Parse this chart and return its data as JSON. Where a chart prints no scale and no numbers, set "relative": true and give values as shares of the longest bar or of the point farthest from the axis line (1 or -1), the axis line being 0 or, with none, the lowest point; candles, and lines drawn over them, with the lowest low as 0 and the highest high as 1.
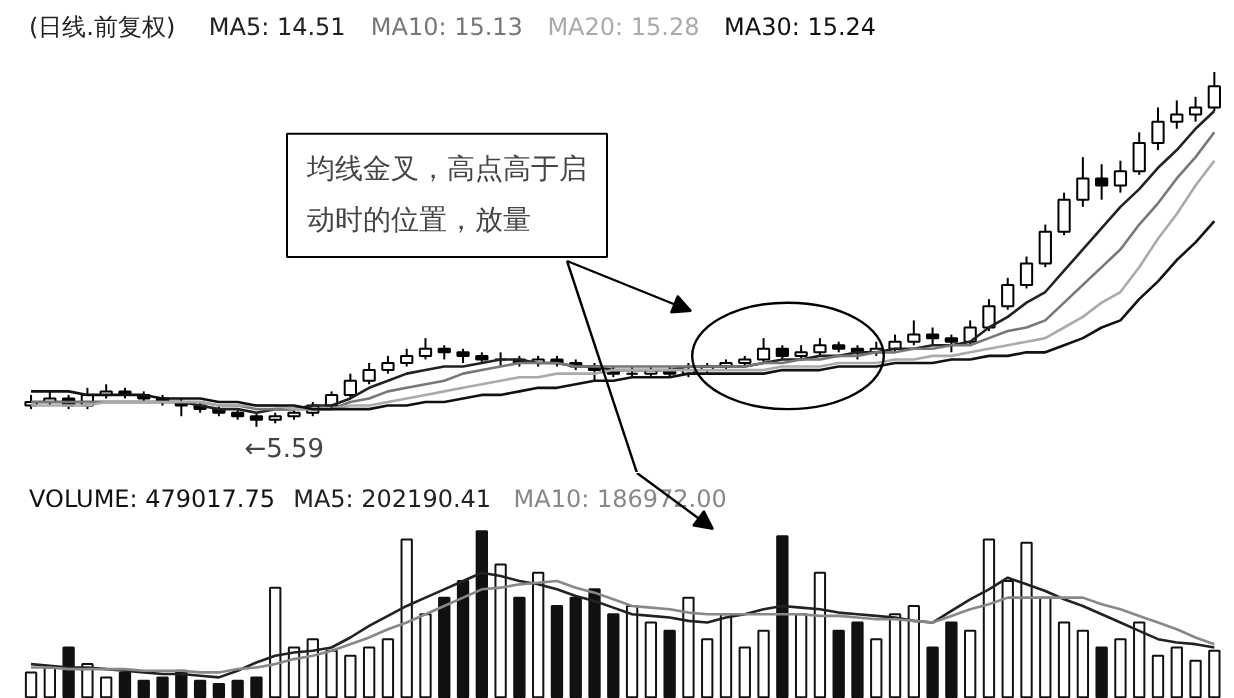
{
  "chart_data": [
    {
      "type": "candlestick",
      "title": "(日线.前复权)",
      "relative": true,
      "legend": "top left",
      "categories": [
        null,
        null,
        null,
        null,
        null,
        null,
        null,
        null,
        null,
        null,
        null,
        null,
        null,
        null,
        null,
        null,
        null,
        null,
        null,
        null,
        null,
        null,
        null,
        null,
        null,
        null,
        null,
        null,
        null,
        null,
        null,
        null,
        null,
        null,
        null,
        null,
        null,
        null,
        null,
        null,
        null,
        null,
        null,
        null,
        null,
        null,
        null,
        null,
        null,
        null,
        null,
        null,
        null,
        null,
        null,
        null,
        null,
        null,
        null,
        null,
        null,
        null,
        null,
        null
      ],
      "ohlc": [
        [
          0.06,
          0.09,
          0.05,
          0.07
        ],
        [
          0.07,
          0.1,
          0.06,
          0.08
        ],
        [
          0.08,
          0.09,
          0.05,
          0.06
        ],
        [
          0.06,
          0.11,
          0.05,
          0.09
        ],
        [
          0.09,
          0.12,
          0.08,
          0.1
        ],
        [
          0.1,
          0.11,
          0.08,
          0.09
        ],
        [
          0.09,
          0.1,
          0.07,
          0.08
        ],
        [
          0.08,
          0.09,
          0.06,
          0.07
        ],
        [
          0.07,
          0.08,
          0.03,
          0.06
        ],
        [
          0.06,
          0.07,
          0.04,
          0.05
        ],
        [
          0.05,
          0.06,
          0.03,
          0.04
        ],
        [
          0.04,
          0.05,
          0.02,
          0.03
        ],
        [
          0.03,
          0.04,
          0.0,
          0.02
        ],
        [
          0.02,
          0.04,
          0.01,
          0.03
        ],
        [
          0.03,
          0.05,
          0.02,
          0.04
        ],
        [
          0.04,
          0.07,
          0.03,
          0.06
        ],
        [
          0.06,
          0.1,
          0.05,
          0.09
        ],
        [
          0.09,
          0.15,
          0.08,
          0.13
        ],
        [
          0.13,
          0.18,
          0.12,
          0.16
        ],
        [
          0.16,
          0.2,
          0.15,
          0.18
        ],
        [
          0.18,
          0.22,
          0.17,
          0.2
        ],
        [
          0.2,
          0.25,
          0.19,
          0.22
        ],
        [
          0.22,
          0.23,
          0.19,
          0.21
        ],
        [
          0.21,
          0.22,
          0.18,
          0.2
        ],
        [
          0.2,
          0.21,
          0.18,
          0.19
        ],
        [
          0.19,
          0.21,
          0.17,
          0.19
        ],
        [
          0.19,
          0.2,
          0.17,
          0.18
        ],
        [
          0.18,
          0.2,
          0.17,
          0.19
        ],
        [
          0.19,
          0.2,
          0.17,
          0.18
        ],
        [
          0.18,
          0.19,
          0.16,
          0.17
        ],
        [
          0.17,
          0.18,
          0.13,
          0.16
        ],
        [
          0.16,
          0.17,
          0.14,
          0.15
        ],
        [
          0.15,
          0.17,
          0.14,
          0.15
        ],
        [
          0.15,
          0.17,
          0.14,
          0.16
        ],
        [
          0.16,
          0.17,
          0.14,
          0.15
        ],
        [
          0.15,
          0.18,
          0.14,
          0.16
        ],
        [
          0.16,
          0.18,
          0.15,
          0.17
        ],
        [
          0.17,
          0.19,
          0.16,
          0.18
        ],
        [
          0.18,
          0.2,
          0.17,
          0.19
        ],
        [
          0.19,
          0.25,
          0.18,
          0.22
        ],
        [
          0.22,
          0.23,
          0.19,
          0.2
        ],
        [
          0.2,
          0.23,
          0.19,
          0.21
        ],
        [
          0.21,
          0.25,
          0.2,
          0.23
        ],
        [
          0.23,
          0.24,
          0.21,
          0.22
        ],
        [
          0.22,
          0.23,
          0.19,
          0.21
        ],
        [
          0.21,
          0.24,
          0.2,
          0.22
        ],
        [
          0.22,
          0.26,
          0.21,
          0.24
        ],
        [
          0.24,
          0.3,
          0.23,
          0.26
        ],
        [
          0.26,
          0.28,
          0.23,
          0.25
        ],
        [
          0.25,
          0.26,
          0.21,
          0.24
        ],
        [
          0.24,
          0.3,
          0.23,
          0.28
        ],
        [
          0.28,
          0.36,
          0.27,
          0.34
        ],
        [
          0.34,
          0.42,
          0.33,
          0.4
        ],
        [
          0.4,
          0.48,
          0.39,
          0.46
        ],
        [
          0.46,
          0.57,
          0.45,
          0.55
        ],
        [
          0.55,
          0.66,
          0.54,
          0.64
        ],
        [
          0.64,
          0.76,
          0.62,
          0.7
        ],
        [
          0.7,
          0.74,
          0.64,
          0.68
        ],
        [
          0.68,
          0.75,
          0.66,
          0.72
        ],
        [
          0.72,
          0.83,
          0.71,
          0.8
        ],
        [
          0.8,
          0.9,
          0.78,
          0.86
        ],
        [
          0.86,
          0.92,
          0.84,
          0.88
        ],
        [
          0.88,
          0.93,
          0.86,
          0.9
        ],
        [
          0.9,
          1.0,
          0.89,
          0.96
        ]
      ],
      "series": [
        {
          "name": "MA5: 14.51",
          "type": "line",
          "color": "#222222",
          "values": [
            0.07,
            0.07,
            0.07,
            0.07,
            0.07,
            0.07,
            0.07,
            0.07,
            0.07,
            0.06,
            0.05,
            0.05,
            0.04,
            0.05,
            0.05,
            0.06,
            0.06,
            0.08,
            0.11,
            0.13,
            0.15,
            0.16,
            0.17,
            0.17,
            0.18,
            0.19,
            0.19,
            0.18,
            0.18,
            0.17,
            0.17,
            0.16,
            0.16,
            0.16,
            0.16,
            0.17,
            0.17,
            0.17,
            0.17,
            0.18,
            0.19,
            0.19,
            0.2,
            0.2,
            0.21,
            0.21,
            0.22,
            0.22,
            0.23,
            0.23,
            0.24,
            0.28,
            0.31,
            0.35,
            0.38,
            0.44,
            0.5,
            0.56,
            0.62,
            0.67,
            0.73,
            0.78,
            0.84,
            0.89
          ]
        },
        {
          "name": "MA10: 15.13",
          "type": "line",
          "color": "#777777",
          "values": [
            0.07,
            0.07,
            0.07,
            0.07,
            0.07,
            0.07,
            0.07,
            0.07,
            0.07,
            0.07,
            0.06,
            0.06,
            0.05,
            0.05,
            0.05,
            0.05,
            0.05,
            0.07,
            0.08,
            0.1,
            0.11,
            0.12,
            0.13,
            0.15,
            0.16,
            0.17,
            0.18,
            0.18,
            0.18,
            0.17,
            0.17,
            0.17,
            0.17,
            0.17,
            0.17,
            0.17,
            0.17,
            0.17,
            0.17,
            0.18,
            0.18,
            0.19,
            0.19,
            0.2,
            0.2,
            0.21,
            0.21,
            0.22,
            0.22,
            0.23,
            0.23,
            0.25,
            0.27,
            0.28,
            0.3,
            0.35,
            0.4,
            0.45,
            0.5,
            0.57,
            0.63,
            0.7,
            0.76,
            0.83
          ]
        },
        {
          "name": "MA20: 15.28",
          "type": "line",
          "color": "#aaaaaa",
          "values": [
            0.06,
            0.06,
            0.06,
            0.06,
            0.07,
            0.07,
            0.07,
            0.07,
            0.07,
            0.07,
            0.06,
            0.06,
            0.06,
            0.06,
            0.05,
            0.05,
            0.05,
            0.06,
            0.06,
            0.07,
            0.08,
            0.09,
            0.1,
            0.11,
            0.12,
            0.13,
            0.14,
            0.14,
            0.15,
            0.15,
            0.15,
            0.16,
            0.16,
            0.16,
            0.16,
            0.16,
            0.16,
            0.16,
            0.16,
            0.16,
            0.17,
            0.17,
            0.17,
            0.18,
            0.18,
            0.18,
            0.19,
            0.19,
            0.2,
            0.2,
            0.21,
            0.22,
            0.23,
            0.24,
            0.25,
            0.28,
            0.31,
            0.35,
            0.38,
            0.45,
            0.53,
            0.6,
            0.68,
            0.75
          ]
        },
        {
          "name": "MA30: 15.24",
          "type": "line",
          "color": "#111111",
          "values": [
            0.1,
            0.1,
            0.1,
            0.09,
            0.09,
            0.09,
            0.09,
            0.08,
            0.08,
            0.08,
            0.07,
            0.07,
            0.06,
            0.06,
            0.06,
            0.05,
            0.05,
            0.05,
            0.05,
            0.06,
            0.06,
            0.07,
            0.07,
            0.08,
            0.09,
            0.09,
            0.1,
            0.11,
            0.11,
            0.12,
            0.13,
            0.13,
            0.14,
            0.14,
            0.14,
            0.15,
            0.15,
            0.15,
            0.15,
            0.15,
            0.16,
            0.16,
            0.16,
            0.17,
            0.17,
            0.17,
            0.18,
            0.18,
            0.18,
            0.19,
            0.19,
            0.2,
            0.2,
            0.21,
            0.21,
            0.23,
            0.25,
            0.28,
            0.3,
            0.36,
            0.41,
            0.47,
            0.52,
            0.58
          ]
        }
      ],
      "annotations": [
        "均线金叉，高点高于启动时的位置，放量",
        "←5.59"
      ]
    },
    {
      "type": "bar",
      "relative": true,
      "legend": "top left",
      "categories": [
        null,
        null,
        null,
        null,
        null,
        null,
        null,
        null,
        null,
        null,
        null,
        null,
        null,
        null,
        null,
        null,
        null,
        null,
        null,
        null,
        null,
        null,
        null,
        null,
        null,
        null,
        null,
        null,
        null,
        null,
        null,
        null,
        null,
        null,
        null,
        null,
        null,
        null,
        null,
        null,
        null,
        null,
        null,
        null,
        null,
        null,
        null,
        null,
        null,
        null,
        null,
        null,
        null,
        null,
        null,
        null,
        null,
        null,
        null,
        null,
        null,
        null,
        null,
        null
      ],
      "series": [
        {
          "name": "VOLUME: 479017.75",
          "type": "bar",
          "color": "#111111",
          "values": [
            0.15,
            0.18,
            0.3,
            0.2,
            0.12,
            0.15,
            0.1,
            0.12,
            0.16,
            0.1,
            0.08,
            0.1,
            0.12,
            0.66,
            0.3,
            0.35,
            0.28,
            0.25,
            0.3,
            0.35,
            0.95,
            0.5,
            0.6,
            0.7,
            1.0,
            0.8,
            0.6,
            0.75,
            0.55,
            0.6,
            0.65,
            0.5,
            0.55,
            0.45,
            0.4,
            0.6,
            0.35,
            0.5,
            0.3,
            0.4,
            0.97,
            0.5,
            0.75,
            0.4,
            0.45,
            0.35,
            0.5,
            0.55,
            0.3,
            0.45,
            0.4,
            0.95,
            0.7,
            0.93,
            0.6,
            0.45,
            0.4,
            0.3,
            0.35,
            0.45,
            0.25,
            0.3,
            0.22,
            0.28
          ]
        },
        {
          "name": "MA5: 202190.41",
          "type": "line",
          "color": "#222222",
          "values": [
            0.2,
            0.19,
            0.18,
            0.18,
            0.17,
            0.16,
            0.15,
            0.14,
            0.14,
            0.13,
            0.12,
            0.16,
            0.21,
            0.25,
            0.27,
            0.28,
            0.3,
            0.36,
            0.43,
            0.49,
            0.55,
            0.6,
            0.65,
            0.7,
            0.75,
            0.73,
            0.7,
            0.68,
            0.65,
            0.61,
            0.58,
            0.54,
            0.5,
            0.49,
            0.48,
            0.46,
            0.45,
            0.48,
            0.5,
            0.53,
            0.55,
            0.54,
            0.53,
            0.51,
            0.5,
            0.49,
            0.48,
            0.46,
            0.45,
            0.52,
            0.59,
            0.65,
            0.72,
            0.68,
            0.64,
            0.59,
            0.55,
            0.5,
            0.45,
            0.4,
            0.35,
            0.33,
            0.32,
            0.3
          ]
        },
        {
          "name": "MA10: 186972.00",
          "type": "line",
          "color": "#888888",
          "values": [
            0.18,
            0.18,
            0.17,
            0.17,
            0.17,
            0.17,
            0.16,
            0.16,
            0.16,
            0.15,
            0.15,
            0.17,
            0.18,
            0.2,
            0.23,
            0.25,
            0.28,
            0.32,
            0.36,
            0.41,
            0.45,
            0.5,
            0.55,
            0.6,
            0.65,
            0.66,
            0.68,
            0.69,
            0.7,
            0.66,
            0.63,
            0.59,
            0.55,
            0.54,
            0.53,
            0.51,
            0.5,
            0.5,
            0.5,
            0.5,
            0.5,
            0.5,
            0.49,
            0.49,
            0.48,
            0.47,
            0.47,
            0.46,
            0.45,
            0.49,
            0.53,
            0.56,
            0.6,
            0.6,
            0.6,
            0.6,
            0.6,
            0.56,
            0.53,
            0.49,
            0.45,
            0.41,
            0.36,
            0.32
          ]
        }
      ]
    }
  ]
}
